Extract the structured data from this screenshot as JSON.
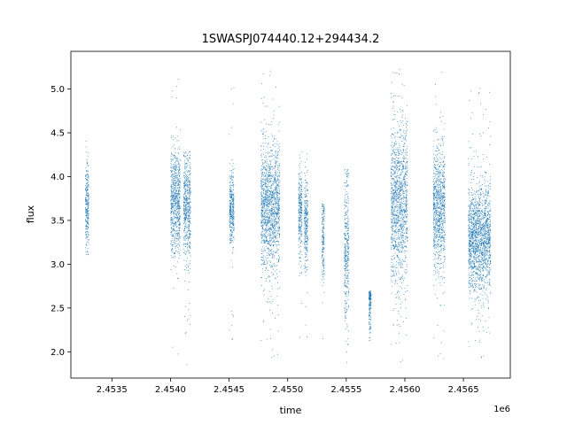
{
  "chart_data": {
    "type": "scatter",
    "title": "1SWASPJ074440.12+294434.2",
    "xlabel": "time",
    "ylabel": "flux",
    "x_offset_label": "1e6",
    "xlim": [
      2453150,
      2456900
    ],
    "ylim": [
      1.7,
      5.43
    ],
    "x_ticks": [
      2453500,
      2454000,
      2454500,
      2455000,
      2455500,
      2456000,
      2456500
    ],
    "x_tick_labels": [
      "2.4535",
      "2.4540",
      "2.4545",
      "2.4550",
      "2.4555",
      "2.4560",
      "2.4565"
    ],
    "y_ticks": [
      2.0,
      2.5,
      3.0,
      3.5,
      4.0,
      4.5,
      5.0
    ],
    "y_tick_labels": [
      "2.0",
      "2.5",
      "3.0",
      "3.5",
      "4.0",
      "4.5",
      "5.0"
    ],
    "grid": false,
    "marker_color": "#1f77b4",
    "series": [
      {
        "clusters": [
          {
            "x_start": 2453270,
            "x_end": 2453300,
            "y_center": 3.65,
            "y_spread": 0.25,
            "y_min": 3.1,
            "y_max": 4.45
          },
          {
            "x_start": 2454000,
            "x_end": 2454080,
            "y_center": 3.7,
            "y_spread": 0.3,
            "y_min": 1.85,
            "y_max": 5.2
          },
          {
            "x_start": 2454110,
            "x_end": 2454170,
            "y_center": 3.65,
            "y_spread": 0.3,
            "y_min": 1.85,
            "y_max": 4.3
          },
          {
            "x_start": 2454500,
            "x_end": 2454540,
            "y_center": 3.65,
            "y_spread": 0.2,
            "y_min": 2.1,
            "y_max": 5.1
          },
          {
            "x_start": 2454770,
            "x_end": 2454930,
            "y_center": 3.65,
            "y_spread": 0.35,
            "y_min": 1.9,
            "y_max": 5.25
          },
          {
            "x_start": 2455090,
            "x_end": 2455120,
            "y_center": 3.6,
            "y_spread": 0.25,
            "y_min": 2.1,
            "y_max": 4.35
          },
          {
            "x_start": 2455140,
            "x_end": 2455170,
            "y_center": 3.5,
            "y_spread": 0.25,
            "y_min": 2.0,
            "y_max": 4.3
          },
          {
            "x_start": 2455290,
            "x_end": 2455310,
            "y_center": 3.3,
            "y_spread": 0.25,
            "y_min": 1.95,
            "y_max": 3.7
          },
          {
            "x_start": 2455480,
            "x_end": 2455520,
            "y_center": 3.2,
            "y_spread": 0.4,
            "y_min": 1.85,
            "y_max": 4.1
          },
          {
            "x_start": 2455690,
            "x_end": 2455710,
            "y_center": 2.6,
            "y_spread": 0.2,
            "y_min": 2.1,
            "y_max": 2.7
          },
          {
            "x_start": 2455880,
            "x_end": 2456020,
            "y_center": 3.7,
            "y_spread": 0.45,
            "y_min": 1.85,
            "y_max": 5.27
          },
          {
            "x_start": 2456240,
            "x_end": 2456340,
            "y_center": 3.65,
            "y_spread": 0.35,
            "y_min": 1.85,
            "y_max": 5.25
          },
          {
            "x_start": 2456540,
            "x_end": 2456730,
            "y_center": 3.3,
            "y_spread": 0.3,
            "y_min": 1.9,
            "y_max": 5.05
          }
        ]
      }
    ]
  }
}
